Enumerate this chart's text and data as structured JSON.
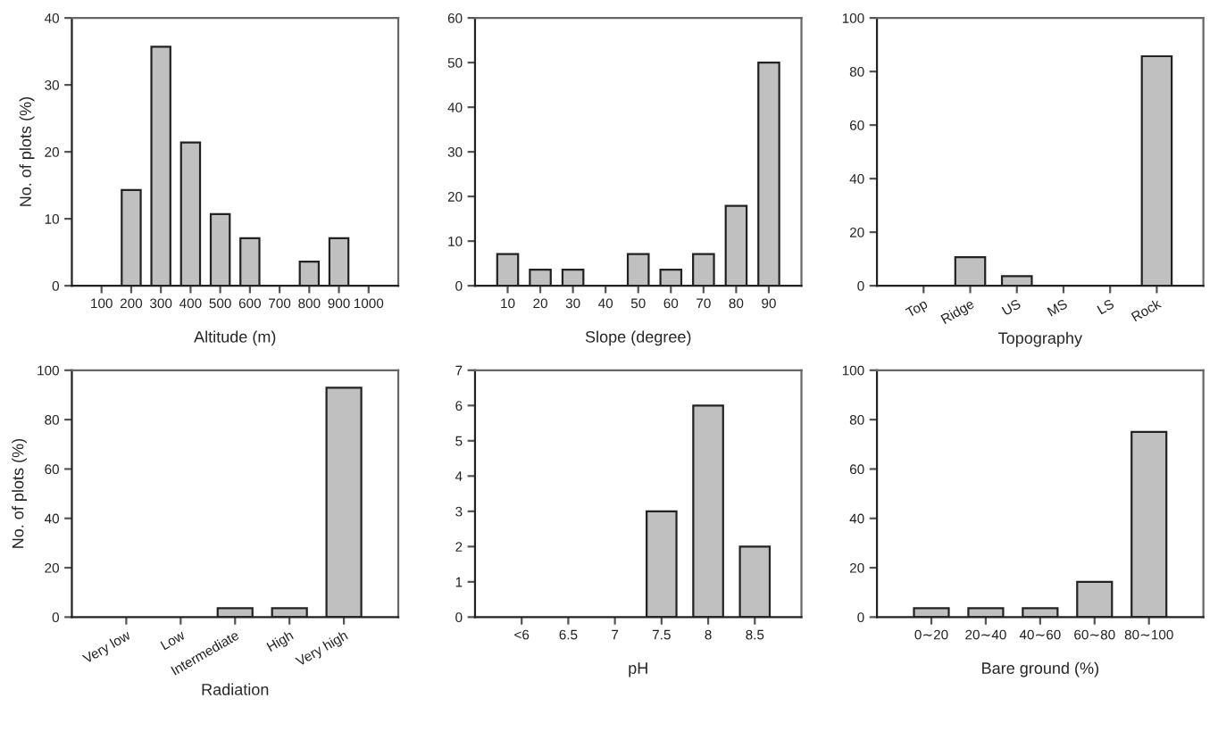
{
  "chart_data": [
    {
      "type": "bar",
      "xlabel": "Altitude (m)",
      "ylabel": "No. of plots (%)",
      "categories": [
        "100",
        "200",
        "300",
        "400",
        "500",
        "600",
        "700",
        "800",
        "900",
        "1000"
      ],
      "values": [
        0,
        14.3,
        35.7,
        21.4,
        10.7,
        7.1,
        0,
        3.6,
        7.1,
        0
      ],
      "color": "#c0c0c0",
      "ylim": [
        0,
        40
      ],
      "yticks": [
        0,
        10,
        20,
        30,
        40
      ],
      "grid": false,
      "legend": false
    },
    {
      "type": "bar",
      "xlabel": "Slope (degree)",
      "categories": [
        "10",
        "20",
        "30",
        "40",
        "50",
        "60",
        "70",
        "80",
        "90"
      ],
      "values": [
        7.1,
        3.6,
        3.6,
        0,
        7.1,
        3.6,
        7.1,
        17.9,
        50
      ],
      "color": "#c0c0c0",
      "ylim": [
        0,
        60
      ],
      "yticks": [
        0,
        10,
        20,
        30,
        40,
        50,
        60
      ],
      "grid": false,
      "legend": false
    },
    {
      "type": "bar",
      "xlabel": "Topography",
      "categories": [
        "Top",
        "Ridge",
        "US",
        "MS",
        "LS",
        "Rock"
      ],
      "values": [
        0,
        10.7,
        3.6,
        0,
        0,
        85.7
      ],
      "color": "#c0c0c0",
      "ylim": [
        0,
        100
      ],
      "yticks": [
        0,
        20,
        40,
        60,
        80,
        100
      ],
      "grid": false,
      "legend": false
    },
    {
      "type": "bar",
      "xlabel": "Radiation",
      "ylabel": "No. of plots (%)",
      "categories": [
        "Very low",
        "Low",
        "Intermediate",
        "High",
        "Very high"
      ],
      "values": [
        0,
        0,
        3.6,
        3.6,
        92.9
      ],
      "color": "#c0c0c0",
      "ylim": [
        0,
        100
      ],
      "yticks": [
        0,
        20,
        40,
        60,
        80,
        100
      ],
      "grid": false,
      "legend": false
    },
    {
      "type": "bar",
      "xlabel": "pH",
      "categories": [
        "<6",
        "6.5",
        "7",
        "7.5",
        "8",
        "8.5"
      ],
      "values": [
        0,
        0,
        0,
        3,
        6,
        2
      ],
      "color": "#c0c0c0",
      "ylim": [
        0,
        7
      ],
      "yticks": [
        0,
        1,
        2,
        3,
        4,
        5,
        6,
        7
      ],
      "grid": false,
      "legend": false
    },
    {
      "type": "bar",
      "xlabel": "Bare ground (%)",
      "categories": [
        "0∼20",
        "20∼40",
        "40∼60",
        "60∼80",
        "80∼100"
      ],
      "values": [
        3.6,
        3.6,
        3.6,
        14.3,
        75
      ],
      "color": "#c0c0c0",
      "ylim": [
        0,
        100
      ],
      "yticks": [
        0,
        20,
        40,
        60,
        80,
        100
      ],
      "grid": false,
      "legend": false
    }
  ]
}
